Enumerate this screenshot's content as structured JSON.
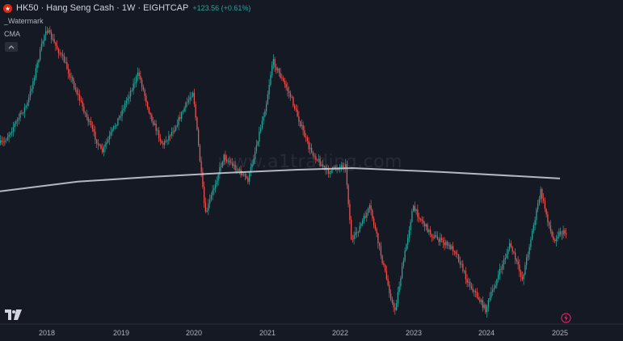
{
  "header": {
    "symbol_title": "HK50 · Hang Seng Cash · 1W · EIGHTCAP",
    "change": "+123.56 (+0.61%)"
  },
  "studies": {
    "watermark_label": "_Watermark",
    "cma_label": "CMA"
  },
  "watermark_text": "www.a1trading.com",
  "colors": {
    "background": "#151924",
    "up": "#26a69a",
    "down": "#ef5350",
    "cma_line": "#d1d4dc"
  },
  "chart_data": {
    "type": "candlestick",
    "title": "HK50 · Hang Seng Cash · 1W · EIGHTCAP",
    "x_ticks": [
      "2018",
      "2019",
      "2020",
      "2021",
      "2022",
      "2023",
      "2024",
      "2025"
    ],
    "y_range": [
      14800,
      33500
    ],
    "price_path": [
      {
        "date": "2017-06",
        "price": 25800
      },
      {
        "date": "2017-10",
        "price": 28300
      },
      {
        "date": "2018-01",
        "price": 33000
      },
      {
        "date": "2018-04",
        "price": 30900
      },
      {
        "date": "2018-07",
        "price": 28000
      },
      {
        "date": "2018-10",
        "price": 25200
      },
      {
        "date": "2019-01",
        "price": 27600
      },
      {
        "date": "2019-04",
        "price": 30200
      },
      {
        "date": "2019-06",
        "price": 27500
      },
      {
        "date": "2019-08",
        "price": 25700
      },
      {
        "date": "2019-10",
        "price": 26800
      },
      {
        "date": "2020-01",
        "price": 29100
      },
      {
        "date": "2020-03",
        "price": 21300
      },
      {
        "date": "2020-06",
        "price": 25000
      },
      {
        "date": "2020-10",
        "price": 23500
      },
      {
        "date": "2021-01",
        "price": 28400
      },
      {
        "date": "2021-02",
        "price": 31000
      },
      {
        "date": "2021-05",
        "price": 28700
      },
      {
        "date": "2021-08",
        "price": 25500
      },
      {
        "date": "2021-11",
        "price": 24000
      },
      {
        "date": "2022-02",
        "price": 24500
      },
      {
        "date": "2022-03",
        "price": 19600
      },
      {
        "date": "2022-06",
        "price": 21800
      },
      {
        "date": "2022-10",
        "price": 15200
      },
      {
        "date": "2023-01",
        "price": 21800
      },
      {
        "date": "2023-04",
        "price": 20100
      },
      {
        "date": "2023-08",
        "price": 19100
      },
      {
        "date": "2023-10",
        "price": 17200
      },
      {
        "date": "2024-01",
        "price": 15400
      },
      {
        "date": "2024-05",
        "price": 19500
      },
      {
        "date": "2024-07",
        "price": 17300
      },
      {
        "date": "2024-10",
        "price": 22800
      },
      {
        "date": "2024-12",
        "price": 19700
      },
      {
        "date": "2025-01",
        "price": 20200
      }
    ],
    "series": [
      {
        "name": "CMA",
        "points": [
          {
            "date": "2017-06",
            "price": 22800
          },
          {
            "date": "2018-06",
            "price": 23400
          },
          {
            "date": "2019-06",
            "price": 23700
          },
          {
            "date": "2020-06",
            "price": 23950
          },
          {
            "date": "2021-06",
            "price": 24150
          },
          {
            "date": "2022-03",
            "price": 24250
          },
          {
            "date": "2023-06",
            "price": 24000
          },
          {
            "date": "2024-06",
            "price": 23750
          },
          {
            "date": "2025-01",
            "price": 23600
          }
        ]
      }
    ]
  }
}
